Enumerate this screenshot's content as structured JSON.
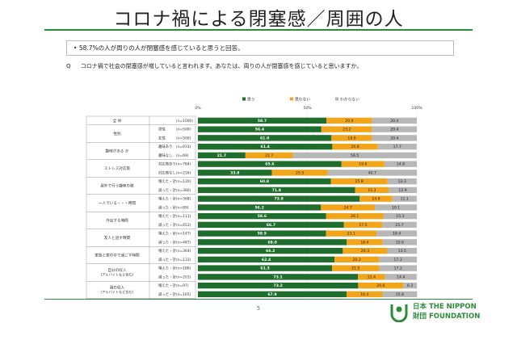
{
  "page": {
    "title": "コロナ禍による閉塞感／周囲の人",
    "summary": "58.7%の人が周りの人が閉塞感を感じていると思うと回答。",
    "summary_bullet": "•",
    "question_label": "Q",
    "question": "コロナ禍で社会の閉塞感が増していると言われます。あなたは、周りの人が閉塞感を感じていると思いますか。",
    "page_number": "5",
    "logo_text_line1": "日本",
    "logo_text_line2": "財団",
    "logo_name_line1": "THE NIPPON",
    "logo_name_line2": "FOUNDATION"
  },
  "colors": {
    "yes": "#1f6e2e",
    "no": "#f3a51a",
    "unknown": "#b7b7b7",
    "brand": "#2e8b3a"
  },
  "chart_data": {
    "type": "bar",
    "stacked": true,
    "orientation": "horizontal",
    "legend": [
      "思う",
      "思わない",
      "わからない"
    ],
    "legend_position": "top-right",
    "x_ticks": [
      "0%",
      "50%",
      "100%"
    ],
    "xlim": [
      0,
      100
    ],
    "groups": [
      {
        "label": [
          "全 体"
        ],
        "rows": [
          {
            "sub": "",
            "n": "(n=1000)",
            "values": [
              58.7,
              20.9,
              20.4
            ]
          }
        ]
      },
      {
        "label": [
          "性別"
        ],
        "rows": [
          {
            "sub": "男性",
            "n": "(n=500)",
            "values": [
              56.4,
              23.2,
              20.4
            ]
          },
          {
            "sub": "女性",
            "n": "(n=500)",
            "values": [
              61.0,
              18.6,
              20.4
            ]
          }
        ]
      },
      {
        "label": [
          "趣味がある か"
        ],
        "rows": [
          {
            "sub": "趣味あり",
            "n": "(n=931)",
            "values": [
              61.4,
              20.8,
              17.7
            ]
          },
          {
            "sub": "趣味なし",
            "n": "(n=69)",
            "values": [
              21.7,
              21.7,
              56.5
            ]
          }
        ]
      },
      {
        "label": [
          "ストレス対応策"
        ],
        "rows": [
          {
            "sub": "対応策あり",
            "n": "(n=784)",
            "values": [
              65.6,
              19.6,
              14.8
            ]
          },
          {
            "sub": "対応策なし",
            "n": "(n=216)",
            "values": [
              33.8,
              25.5,
              40.7
            ]
          }
        ]
      },
      {
        "label": [
          "屋外で行う趣味の数"
        ],
        "rows": [
          {
            "sub": "増えた・計",
            "n": "(n=120)",
            "values": [
              60.8,
              25.8,
              13.3
            ]
          },
          {
            "sub": "減った・計",
            "n": "(n=380)",
            "values": [
              71.8,
              15.3,
              12.9
            ]
          }
        ]
      },
      {
        "label": [
          "一人でいる・・・時間"
        ],
        "rows": [
          {
            "sub": "増えた・計",
            "n": "(n=368)",
            "values": [
              73.9,
              14.9,
              11.1
            ]
          },
          {
            "sub": "減った・計",
            "n": "(n=89)",
            "values": [
              56.2,
              24.7,
              19.1
            ]
          }
        ]
      },
      {
        "label": [
          "外出する時間"
        ],
        "rows": [
          {
            "sub": "増えた・計",
            "n": "(n=111)",
            "values": [
              58.6,
              26.1,
              15.3
            ]
          },
          {
            "sub": "減った・計",
            "n": "(n=653)",
            "values": [
              66.7,
              17.5,
              15.7
            ]
          }
        ]
      },
      {
        "label": [
          "友人と話す時間"
        ],
        "rows": [
          {
            "sub": "増えた・計",
            "n": "(n=147)",
            "values": [
              58.5,
              23.1,
              18.4
            ]
          },
          {
            "sub": "減った・計",
            "n": "(n=487)",
            "values": [
              68.0,
              16.4,
              15.6
            ]
          }
        ]
      },
      {
        "label": [
          "家族と家の中で過ごす時間"
        ],
        "rows": [
          {
            "sub": "増えた・計",
            "n": "(n=364)",
            "values": [
              66.2,
              20.3,
              13.5
            ]
          },
          {
            "sub": "減った・計",
            "n": "(n=133)",
            "values": [
              62.4,
              20.3,
              17.3
            ]
          }
        ]
      },
      {
        "label": [
          "自分の収入",
          "(アルバイトなど含む)"
        ],
        "rows": [
          {
            "sub": "増えた・計",
            "n": "(n=186)",
            "values": [
              61.3,
              21.5,
              17.2
            ]
          },
          {
            "sub": "減った・計",
            "n": "(n=201)",
            "values": [
              73.1,
              12.4,
              14.4
            ]
          }
        ]
      },
      {
        "label": [
          "親の収入",
          "(アルバイトなど含む)"
        ],
        "rows": [
          {
            "sub": "増えた・計",
            "n": "(n=97)",
            "values": [
              73.2,
              20.6,
              6.2
            ]
          },
          {
            "sub": "減った・計",
            "n": "(n=165)",
            "values": [
              67.9,
              16.4,
              15.8
            ]
          }
        ]
      },
      {
        "label": [
          "スマホを操作する時間"
        ],
        "rows": [
          {
            "sub": "増えた・計",
            "n": "(n=718)",
            "values": [
              64.9,
              19.1,
              16.0
            ]
          },
          {
            "sub": "減った・計",
            "n": "(n=49)",
            "values": [
              59.2,
              22.4,
              18.4
            ]
          }
        ]
      }
    ]
  }
}
